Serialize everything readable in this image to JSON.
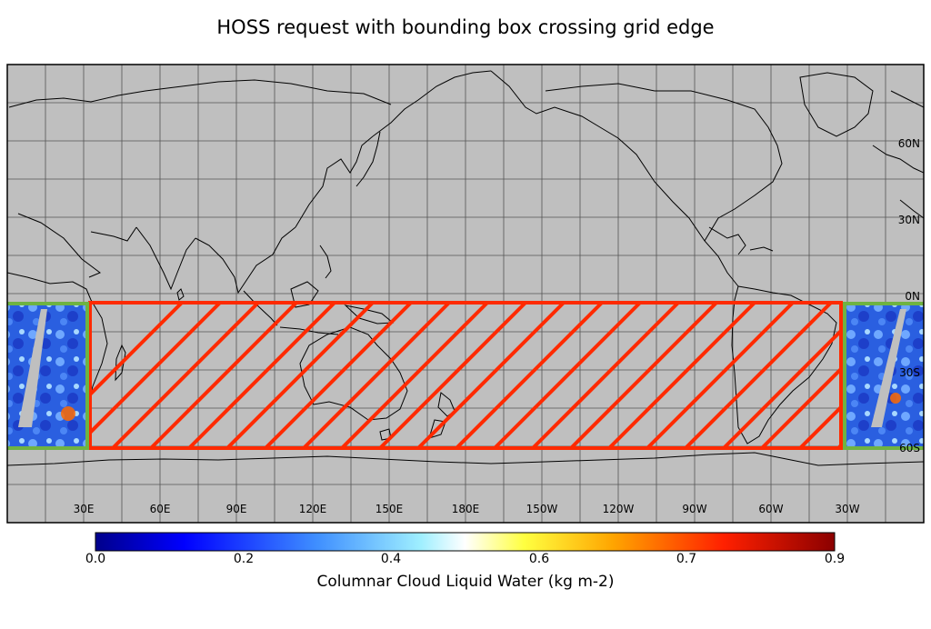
{
  "title": "HOSS request with bounding box crossing grid edge",
  "map": {
    "background_color": "#bfbfbf",
    "coast_color": "#000000",
    "grid_color": "#555555",
    "lat_labels": [
      "60N",
      "30N",
      "0N",
      "30S",
      "60S"
    ],
    "lon_labels": [
      "30E",
      "60E",
      "90E",
      "120E",
      "150E",
      "180E",
      "150W",
      "120W",
      "90W",
      "60W",
      "30W"
    ]
  },
  "request_box": {
    "color": "#ff2a00",
    "hatch": "diagonal"
  },
  "granule_box": {
    "color": "#6fb342"
  },
  "colorbar": {
    "label": "Columnar Cloud Liquid Water (kg m-2)",
    "ticks": [
      "0.0",
      "0.2",
      "0.4",
      "0.6",
      "0.7",
      "0.9"
    ],
    "colors": [
      "#00008b",
      "#0000ff",
      "#3f8fff",
      "#9fefff",
      "#ffffff",
      "#ffff40",
      "#ffa500",
      "#ff2000",
      "#8b0000"
    ]
  }
}
